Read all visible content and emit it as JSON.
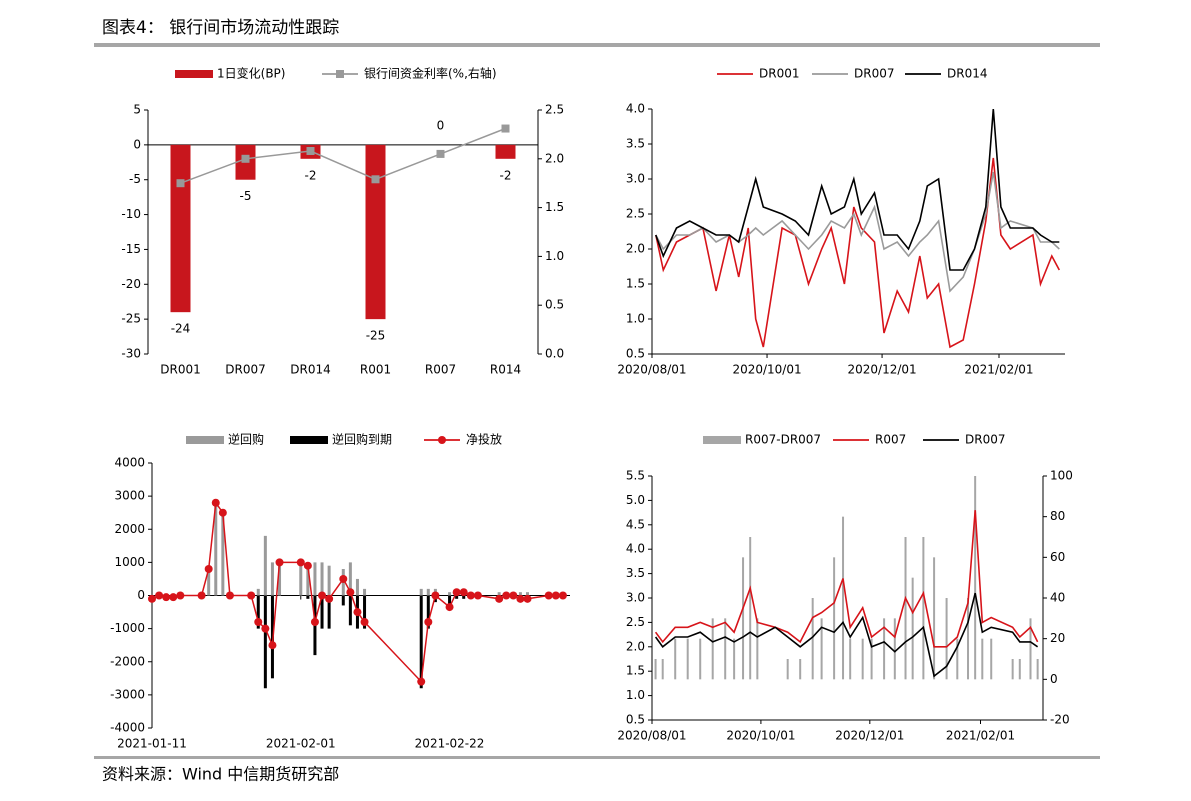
{
  "header": {
    "title": "图表4： 银行间市场流动性跟踪"
  },
  "footer": {
    "source": "资料来源：Wind 中信期货研究部"
  },
  "chart_data": [
    {
      "type": "combo",
      "categories": [
        "DR001",
        "DR007",
        "DR014",
        "R001",
        "R007",
        "R014"
      ],
      "series": [
        {
          "name": "1日变化(BP)",
          "type": "bar",
          "color": "#c8161d",
          "values": [
            -24,
            -5,
            -2,
            -25,
            0,
            -2
          ],
          "data_labels": true
        },
        {
          "name": "银行间资金利率(%,右轴)",
          "type": "line",
          "axis": "y2",
          "color": "#999999",
          "marker": "square",
          "values": [
            1.75,
            2.0,
            2.08,
            1.79,
            2.05,
            2.31
          ]
        }
      ],
      "ylim": [
        -30,
        5
      ],
      "yticks": [
        -30,
        -25,
        -20,
        -15,
        -10,
        -5,
        0,
        5
      ],
      "y2lim": [
        0,
        2.5
      ],
      "y2ticks": [
        {
          "value": 0,
          "label": "0.0"
        },
        0.5,
        {
          "value": 1,
          "label": "1.0"
        },
        1.5,
        {
          "value": 2,
          "label": "2.0"
        },
        2.5
      ],
      "grid": false
    },
    {
      "type": "line",
      "x": [
        "2020/08/03",
        "2020/08/07",
        "2020/08/14",
        "2020/08/21",
        "2020/08/28",
        "2020/09/04",
        "2020/09/11",
        "2020/09/16",
        "2020/09/21",
        "2020/09/25",
        "2020/09/29",
        "2020/10/09",
        "2020/10/16",
        "2020/10/23",
        "2020/10/30",
        "2020/11/04",
        "2020/11/11",
        "2020/11/16",
        "2020/11/20",
        "2020/11/27",
        "2020/12/02",
        "2020/12/09",
        "2020/12/15",
        "2020/12/21",
        "2020/12/25",
        "2020/12/31",
        "2021/01/06",
        "2021/01/13",
        "2021/01/19",
        "2021/01/25",
        "2021/01/29",
        "2021/02/02",
        "2021/02/07",
        "2021/02/19",
        "2021/02/23",
        "2021/03/01",
        "2021/03/05"
      ],
      "series": [
        {
          "name": "DR001",
          "color": "#d7141a",
          "values": [
            2.2,
            1.7,
            2.1,
            2.2,
            2.3,
            1.4,
            2.2,
            1.6,
            2.3,
            1.0,
            0.6,
            2.3,
            2.2,
            1.5,
            2.0,
            2.3,
            1.5,
            2.6,
            2.3,
            2.1,
            0.8,
            1.4,
            1.1,
            1.9,
            1.3,
            1.5,
            0.6,
            0.7,
            1.5,
            2.4,
            3.3,
            2.2,
            2.0,
            2.2,
            1.5,
            1.9,
            1.7
          ]
        },
        {
          "name": "DR007",
          "color": "#9a9a9a",
          "values": [
            2.2,
            2.0,
            2.2,
            2.2,
            2.3,
            2.1,
            2.2,
            2.1,
            2.2,
            2.3,
            2.2,
            2.4,
            2.2,
            2.0,
            2.2,
            2.4,
            2.3,
            2.5,
            2.2,
            2.6,
            2.0,
            2.1,
            1.9,
            2.1,
            2.2,
            2.4,
            1.4,
            1.6,
            2.0,
            2.5,
            3.1,
            2.3,
            2.4,
            2.3,
            2.1,
            2.1,
            2.0
          ]
        },
        {
          "name": "DR014",
          "color": "#000000",
          "values": [
            2.2,
            1.9,
            2.3,
            2.4,
            2.3,
            2.2,
            2.2,
            2.1,
            2.6,
            3.0,
            2.6,
            2.5,
            2.4,
            2.2,
            2.9,
            2.5,
            2.6,
            3.0,
            2.5,
            2.8,
            2.2,
            2.2,
            2.0,
            2.4,
            2.9,
            3.0,
            1.7,
            1.7,
            2.0,
            2.6,
            4.0,
            2.6,
            2.3,
            2.3,
            2.2,
            2.1,
            2.1
          ]
        }
      ],
      "xlim": [
        "2020/08/01",
        "2021/03/08"
      ],
      "xticks": [
        "2020/08/01",
        "2020/10/01",
        "2020/12/01",
        "2021/02/01"
      ],
      "ylim": [
        0.5,
        4
      ],
      "yticks": [
        0.5,
        {
          "value": 1,
          "label": "1.0"
        },
        1.5,
        {
          "value": 2,
          "label": "2.0"
        },
        2.5,
        {
          "value": 3,
          "label": "3.0"
        },
        3.5,
        {
          "value": 4,
          "label": "4.0"
        }
      ],
      "grid": false
    },
    {
      "type": "combo",
      "x": [
        "2021-01-11",
        "2021-01-12",
        "2021-01-13",
        "2021-01-14",
        "2021-01-15",
        "2021-01-18",
        "2021-01-19",
        "2021-01-20",
        "2021-01-21",
        "2021-01-22",
        "2021-01-25",
        "2021-01-26",
        "2021-01-27",
        "2021-01-28",
        "2021-01-29",
        "2021-02-01",
        "2021-02-02",
        "2021-02-03",
        "2021-02-04",
        "2021-02-05",
        "2021-02-07",
        "2021-02-08",
        "2021-02-09",
        "2021-02-10",
        "2021-02-18",
        "2021-02-19",
        "2021-02-20",
        "2021-02-22",
        "2021-02-23",
        "2021-02-24",
        "2021-02-25",
        "2021-02-26",
        "2021-03-01",
        "2021-03-02",
        "2021-03-03",
        "2021-03-04",
        "2021-03-05",
        "2021-03-08",
        "2021-03-09",
        "2021-03-10"
      ],
      "series": [
        {
          "name": "逆回购",
          "type": "bar",
          "color": "#9a9a9a",
          "values": [
            null,
            100,
            50,
            50,
            100,
            100,
            800,
            2800,
            2500,
            100,
            100,
            200,
            1800,
            1000,
            1000,
            1000,
            1000,
            1000,
            1000,
            900,
            800,
            1000,
            500,
            200,
            200,
            200,
            200,
            100,
            200,
            200,
            100,
            100,
            100,
            100,
            100,
            100,
            100,
            100,
            100,
            100
          ]
        },
        {
          "name": "逆回购到期",
          "type": "bar",
          "color": "#000000",
          "values": [
            -100,
            -100,
            -100,
            -100,
            -100,
            -100,
            null,
            null,
            null,
            -100,
            -100,
            -1000,
            -2800,
            -2500,
            null,
            null,
            -100,
            -1800,
            -1000,
            -1000,
            -300,
            -900,
            -1000,
            -1000,
            -2800,
            -1000,
            -200,
            -450,
            -100,
            -100,
            -100,
            -100,
            -200,
            -100,
            -100,
            -200,
            -200,
            -100,
            -100,
            -100
          ]
        },
        {
          "name": "净投放",
          "type": "line",
          "color": "#d7141a",
          "marker": "circle",
          "values": [
            -100,
            0,
            -50,
            -50,
            0,
            0,
            800,
            2800,
            2500,
            0,
            0,
            -800,
            -1000,
            -1500,
            1000,
            1000,
            900,
            -800,
            0,
            -100,
            500,
            100,
            -500,
            -800,
            -2600,
            -800,
            0,
            -350,
            100,
            100,
            0,
            0,
            -100,
            0,
            0,
            -100,
            -100,
            0,
            0,
            0
          ]
        }
      ],
      "xlim": [
        "2021-01-11",
        "2021-03-11"
      ],
      "xticks": [
        "2021-01-11",
        "2021-02-01",
        "2021-02-22"
      ],
      "ylim": [
        -4000,
        4000
      ],
      "yticks": [
        -4000,
        -3000,
        -2000,
        -1000,
        0,
        1000,
        2000,
        3000,
        4000
      ],
      "grid": false
    },
    {
      "type": "combo",
      "x": [
        "2020/08/03",
        "2020/08/07",
        "2020/08/14",
        "2020/08/21",
        "2020/08/28",
        "2020/09/04",
        "2020/09/11",
        "2020/09/16",
        "2020/09/21",
        "2020/09/25",
        "2020/09/29",
        "2020/10/09",
        "2020/10/16",
        "2020/10/23",
        "2020/10/30",
        "2020/11/04",
        "2020/11/11",
        "2020/11/16",
        "2020/11/20",
        "2020/11/27",
        "2020/12/02",
        "2020/12/09",
        "2020/12/15",
        "2020/12/21",
        "2020/12/25",
        "2020/12/31",
        "2021/01/06",
        "2021/01/13",
        "2021/01/19",
        "2021/01/25",
        "2021/01/29",
        "2021/02/02",
        "2021/02/07",
        "2021/02/19",
        "2021/02/23",
        "2021/03/01",
        "2021/03/05"
      ],
      "series": [
        {
          "name": "R007-DR007",
          "type": "bar",
          "axis": "y2",
          "color": "#a6a6a6",
          "values": [
            10,
            10,
            20,
            20,
            20,
            30,
            30,
            20,
            60,
            70,
            30,
            0,
            10,
            10,
            40,
            30,
            60,
            80,
            20,
            20,
            20,
            30,
            30,
            70,
            50,
            70,
            60,
            40,
            20,
            40,
            100,
            20,
            20,
            10,
            10,
            30,
            10
          ]
        },
        {
          "name": "R007",
          "type": "line",
          "color": "#d7141a",
          "values": [
            2.3,
            2.1,
            2.4,
            2.4,
            2.5,
            2.4,
            2.5,
            2.3,
            2.8,
            3.2,
            2.5,
            2.4,
            2.3,
            2.1,
            2.6,
            2.7,
            2.9,
            3.4,
            2.4,
            2.8,
            2.2,
            2.4,
            2.2,
            3.0,
            2.7,
            3.1,
            2.0,
            2.0,
            2.2,
            2.9,
            4.8,
            2.5,
            2.6,
            2.4,
            2.2,
            2.4,
            2.1
          ]
        },
        {
          "name": "DR007",
          "type": "line",
          "color": "#000000",
          "values": [
            2.2,
            2.0,
            2.2,
            2.2,
            2.3,
            2.1,
            2.2,
            2.1,
            2.2,
            2.3,
            2.2,
            2.4,
            2.2,
            2.0,
            2.2,
            2.4,
            2.3,
            2.5,
            2.2,
            2.6,
            2.0,
            2.1,
            1.9,
            2.1,
            2.2,
            2.4,
            1.4,
            1.6,
            2.0,
            2.5,
            3.1,
            2.3,
            2.4,
            2.3,
            2.1,
            2.1,
            2.0
          ]
        }
      ],
      "xlim": [
        "2020/08/01",
        "2021/03/08"
      ],
      "xticks": [
        "2020/08/01",
        "2020/10/01",
        "2020/12/01",
        "2021/02/01"
      ],
      "ylim": [
        0.5,
        5.5
      ],
      "yticks": [
        0.5,
        {
          "value": 1,
          "label": "1.0"
        },
        1.5,
        {
          "value": 2,
          "label": "2.0"
        },
        2.5,
        {
          "value": 3,
          "label": "3.0"
        },
        3.5,
        {
          "value": 4,
          "label": "4.0"
        },
        4.5,
        {
          "value": 5,
          "label": "5.0"
        },
        5.5
      ],
      "y2lim": [
        -20,
        100
      ],
      "y2ticks": [
        -20,
        0,
        20,
        40,
        60,
        80,
        100
      ],
      "grid": false
    }
  ]
}
